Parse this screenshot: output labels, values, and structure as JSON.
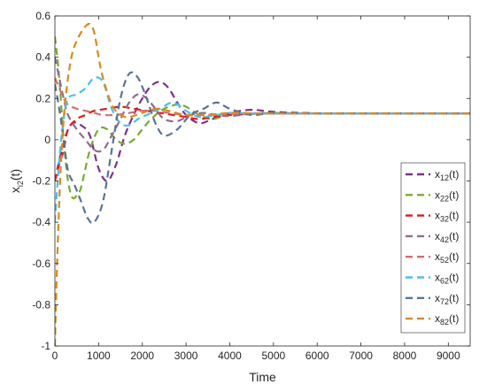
{
  "chart_data": {
    "type": "line",
    "title": "",
    "xlabel": "Time",
    "ylabel": {
      "main": "x",
      "sub": "i2",
      "tail": "(t)"
    },
    "xlim": [
      0,
      9500
    ],
    "ylim": [
      -1,
      0.6
    ],
    "xticks": [
      0,
      1000,
      2000,
      3000,
      4000,
      5000,
      6000,
      7000,
      8000,
      9000
    ],
    "xtick_labels": [
      "0",
      "1000",
      "2000",
      "3000",
      "4000",
      "5000",
      "6000",
      "7000",
      "8000",
      "9000"
    ],
    "yticks": [
      -1,
      -0.8,
      -0.6,
      -0.4,
      -0.2,
      0,
      0.2,
      0.4,
      0.6
    ],
    "ytick_labels": [
      "-1",
      "-0.8",
      "-0.6",
      "-0.4",
      "-0.2",
      "0",
      "0.2",
      "0.4",
      "0.6"
    ],
    "grid": false,
    "legend_position": "lower-right",
    "line_style": "dashed",
    "series": [
      {
        "label_main": "x",
        "label_sub": "12",
        "label_tail": "(t)",
        "color": "#7E2F8E",
        "x": [
          0,
          100,
          250,
          400,
          600,
          800,
          1000,
          1200,
          1400,
          1600,
          1800,
          2000,
          2200,
          2400,
          2600,
          2800,
          3000,
          3300,
          3600,
          4000,
          4500,
          5000,
          6000,
          7000,
          9500
        ],
        "y": [
          -0.2,
          -0.1,
          0.02,
          0.08,
          0.07,
          0.02,
          -0.14,
          -0.2,
          -0.12,
          0.02,
          0.12,
          0.2,
          0.26,
          0.28,
          0.25,
          0.18,
          0.12,
          0.08,
          0.1,
          0.13,
          0.145,
          0.135,
          0.128,
          0.127,
          0.127
        ]
      },
      {
        "label_main": "x",
        "label_sub": "22",
        "label_tail": "(t)",
        "color": "#77AC30",
        "x": [
          0,
          100,
          200,
          300,
          400,
          500,
          600,
          800,
          1000,
          1200,
          1400,
          1600,
          1800,
          2000,
          2200,
          2500,
          2800,
          3000,
          3300,
          3600,
          4000,
          5000,
          6000,
          9500
        ],
        "y": [
          0.5,
          0.3,
          0.0,
          -0.2,
          -0.28,
          -0.27,
          -0.23,
          -0.05,
          0.05,
          0.05,
          0.0,
          -0.02,
          0.0,
          0.05,
          0.1,
          0.15,
          0.17,
          0.16,
          0.12,
          0.1,
          0.12,
          0.13,
          0.127,
          0.127
        ]
      },
      {
        "label_main": "x",
        "label_sub": "32",
        "label_tail": "(t)",
        "color": "#E41A1C",
        "x": [
          0,
          100,
          200,
          300,
          500,
          700,
          900,
          1200,
          1500,
          1800,
          2100,
          2400,
          2700,
          3000,
          3300,
          3600,
          4000,
          4500,
          5000,
          6000,
          9500
        ],
        "y": [
          -0.2,
          -0.12,
          -0.05,
          0.05,
          0.1,
          0.12,
          0.14,
          0.15,
          0.16,
          0.15,
          0.14,
          0.13,
          0.12,
          0.11,
          0.1,
          0.11,
          0.12,
          0.125,
          0.127,
          0.127,
          0.127
        ]
      },
      {
        "label_main": "x",
        "label_sub": "42",
        "label_tail": "(t)",
        "color": "#8C6D8C",
        "x": [
          0,
          100,
          200,
          300,
          500,
          700,
          900,
          1100,
          1300,
          1500,
          1700,
          1900,
          2100,
          2300,
          2500,
          2800,
          3100,
          3400,
          3700,
          4000,
          4500,
          5000,
          6000,
          9500
        ],
        "y": [
          0.4,
          0.3,
          0.2,
          0.12,
          0.05,
          0.0,
          -0.05,
          -0.05,
          0.02,
          0.1,
          0.18,
          0.22,
          0.2,
          0.15,
          0.1,
          0.09,
          0.12,
          0.13,
          0.12,
          0.115,
          0.125,
          0.128,
          0.127,
          0.127
        ]
      },
      {
        "label_main": "x",
        "label_sub": "52",
        "label_tail": "(t)",
        "color": "#D07070",
        "x": [
          0,
          100,
          200,
          300,
          500,
          700,
          900,
          1100,
          1400,
          1700,
          2000,
          2300,
          2600,
          3000,
          3500,
          4000,
          5000,
          6000,
          9500
        ],
        "y": [
          0.3,
          0.25,
          0.2,
          0.17,
          0.15,
          0.14,
          0.13,
          0.12,
          0.12,
          0.13,
          0.14,
          0.14,
          0.13,
          0.12,
          0.12,
          0.125,
          0.127,
          0.127,
          0.127
        ]
      },
      {
        "label_main": "x",
        "label_sub": "62",
        "label_tail": "(t)",
        "color": "#4DBEEE",
        "x": [
          0,
          100,
          200,
          300,
          500,
          700,
          900,
          1100,
          1300,
          1500,
          1700,
          1900,
          2100,
          2400,
          2700,
          3000,
          3300,
          3700,
          4000,
          4500,
          5000,
          6000,
          9500
        ],
        "y": [
          -0.4,
          -0.1,
          0.1,
          0.2,
          0.22,
          0.25,
          0.3,
          0.28,
          0.15,
          0.08,
          0.07,
          0.1,
          0.12,
          0.15,
          0.18,
          0.14,
          0.11,
          0.12,
          0.13,
          0.127,
          0.127,
          0.127,
          0.127
        ]
      },
      {
        "label_main": "x",
        "label_sub": "72",
        "label_tail": "(t)",
        "color": "#5A7396",
        "x": [
          0,
          100,
          200,
          300,
          450,
          600,
          750,
          900,
          1100,
          1300,
          1500,
          1700,
          1900,
          2100,
          2300,
          2500,
          2800,
          3100,
          3400,
          3700,
          4000,
          4500,
          5000,
          6000,
          9500
        ],
        "y": [
          0.27,
          0.15,
          0.0,
          -0.15,
          -0.22,
          -0.3,
          -0.38,
          -0.4,
          -0.3,
          -0.05,
          0.2,
          0.32,
          0.3,
          0.2,
          0.08,
          0.02,
          0.05,
          0.12,
          0.15,
          0.18,
          0.15,
          0.12,
          0.13,
          0.127,
          0.127
        ]
      },
      {
        "label_main": "x",
        "label_sub": "82",
        "label_tail": "(t)",
        "color": "#D98A1E",
        "x": [
          0,
          50,
          120,
          200,
          300,
          400,
          500,
          600,
          700,
          800,
          900,
          1000,
          1100,
          1300,
          1500,
          1700,
          2000,
          2300,
          2600,
          3000,
          3500,
          4000,
          4500,
          5000,
          6000,
          9500
        ],
        "y": [
          -1.0,
          -0.6,
          -0.2,
          0.1,
          0.3,
          0.42,
          0.48,
          0.52,
          0.55,
          0.56,
          0.52,
          0.4,
          0.3,
          0.17,
          0.12,
          0.11,
          0.13,
          0.15,
          0.14,
          0.12,
          0.12,
          0.13,
          0.128,
          0.127,
          0.127,
          0.127
        ]
      }
    ]
  }
}
